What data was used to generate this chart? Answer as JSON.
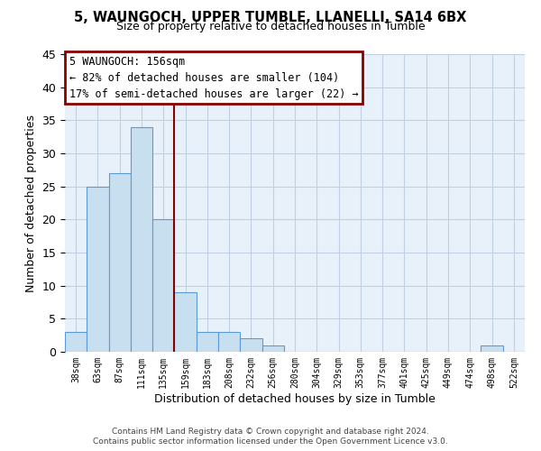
{
  "title": "5, WAUNGOCH, UPPER TUMBLE, LLANELLI, SA14 6BX",
  "subtitle": "Size of property relative to detached houses in Tumble",
  "xlabel": "Distribution of detached houses by size in Tumble",
  "ylabel": "Number of detached properties",
  "bin_labels": [
    "38sqm",
    "63sqm",
    "87sqm",
    "111sqm",
    "135sqm",
    "159sqm",
    "183sqm",
    "208sqm",
    "232sqm",
    "256sqm",
    "280sqm",
    "304sqm",
    "329sqm",
    "353sqm",
    "377sqm",
    "401sqm",
    "425sqm",
    "449sqm",
    "474sqm",
    "498sqm",
    "522sqm"
  ],
  "bar_values": [
    3,
    25,
    27,
    34,
    20,
    9,
    3,
    3,
    2,
    1,
    0,
    0,
    0,
    0,
    0,
    0,
    0,
    0,
    0,
    1,
    0
  ],
  "bar_color": "#c8dff0",
  "bar_edge_color": "#5b9bd5",
  "vline_x_index": 4.5,
  "vline_color": "#880000",
  "ylim": [
    0,
    45
  ],
  "yticks": [
    0,
    5,
    10,
    15,
    20,
    25,
    30,
    35,
    40,
    45
  ],
  "annotation_title": "5 WAUNGOCH: 156sqm",
  "annotation_line1": "← 82% of detached houses are smaller (104)",
  "annotation_line2": "17% of semi-detached houses are larger (22) →",
  "footer_line1": "Contains HM Land Registry data © Crown copyright and database right 2024.",
  "footer_line2": "Contains public sector information licensed under the Open Government Licence v3.0.",
  "grid_color": "#c0d0e0",
  "bg_color": "#e8f1fa"
}
